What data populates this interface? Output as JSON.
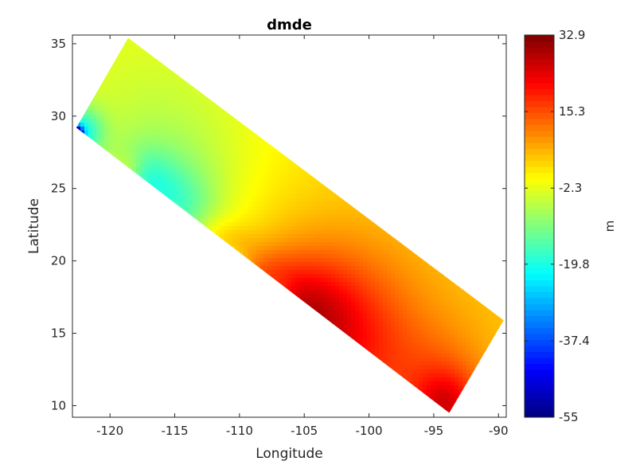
{
  "chart_data": {
    "type": "heatmap",
    "title": "dmde",
    "xlabel": "Longitude",
    "ylabel": "Latitude",
    "xlim": [
      -122.9,
      -89.4
    ],
    "ylim": [
      9.2,
      35.6
    ],
    "xticks": [
      -120,
      -115,
      -110,
      -105,
      -100,
      -95,
      -90
    ],
    "yticks": [
      10,
      15,
      20,
      25,
      30,
      35
    ],
    "grid": false,
    "domain_polygon": [
      [
        -122.6,
        29.2
      ],
      [
        -118.6,
        35.4
      ],
      [
        -89.6,
        15.9
      ],
      [
        -93.8,
        9.5
      ]
    ],
    "background_value": -1.0,
    "features": [
      {
        "lon": -102.8,
        "lat": 14.7,
        "value": 12,
        "radius": 3.6
      },
      {
        "lon": -105.5,
        "lat": 16.7,
        "value": 10,
        "radius": 2.4
      },
      {
        "lon": -103.5,
        "lat": 16.0,
        "value": 7,
        "radius": 5.5
      },
      {
        "lon": -94.0,
        "lat": 9.8,
        "value": 14,
        "radius": 1.8
      },
      {
        "lon": -95.0,
        "lat": 11.2,
        "value": 7,
        "radius": 3.2
      },
      {
        "lon": -98.0,
        "lat": 14.0,
        "value": 3,
        "radius": 8.0
      },
      {
        "lon": -108.0,
        "lat": 18.6,
        "value": 6,
        "radius": 1.6
      },
      {
        "lon": -110.5,
        "lat": 20.8,
        "value": 5,
        "radius": 1.2
      },
      {
        "lon": -112.2,
        "lat": 21.7,
        "value": 4,
        "radius": 1.0
      },
      {
        "lon": -118.6,
        "lat": 26.3,
        "value": 5,
        "radius": 0.8
      },
      {
        "lon": -117.2,
        "lat": 25.6,
        "value": -8,
        "radius": 1.6
      },
      {
        "lon": -114.6,
        "lat": 23.6,
        "value": -9,
        "radius": 2.0
      },
      {
        "lon": -115.5,
        "lat": 25.0,
        "value": -5,
        "radius": 3.6
      },
      {
        "lon": -122.3,
        "lat": 28.9,
        "value": -18,
        "radius": 1.2
      },
      {
        "lon": -122.6,
        "lat": 28.8,
        "value": -50,
        "radius": 0.35
      },
      {
        "lon": -110.8,
        "lat": 19.6,
        "value": -9,
        "radius": 1.0
      },
      {
        "lon": -113.0,
        "lat": 20.7,
        "value": -7,
        "radius": 0.8
      },
      {
        "lon": -107.0,
        "lat": 17.8,
        "value": -5,
        "radius": 0.9
      },
      {
        "lon": -116.0,
        "lat": 29.0,
        "value": -4,
        "radius": 5.5
      }
    ],
    "colorbar": {
      "label": "m",
      "min": -55,
      "max": 32.9,
      "ticks": [
        "32.9",
        "15.3",
        "-2.3",
        "-19.8",
        "-37.4",
        "-55"
      ],
      "colormap": "jet"
    }
  }
}
